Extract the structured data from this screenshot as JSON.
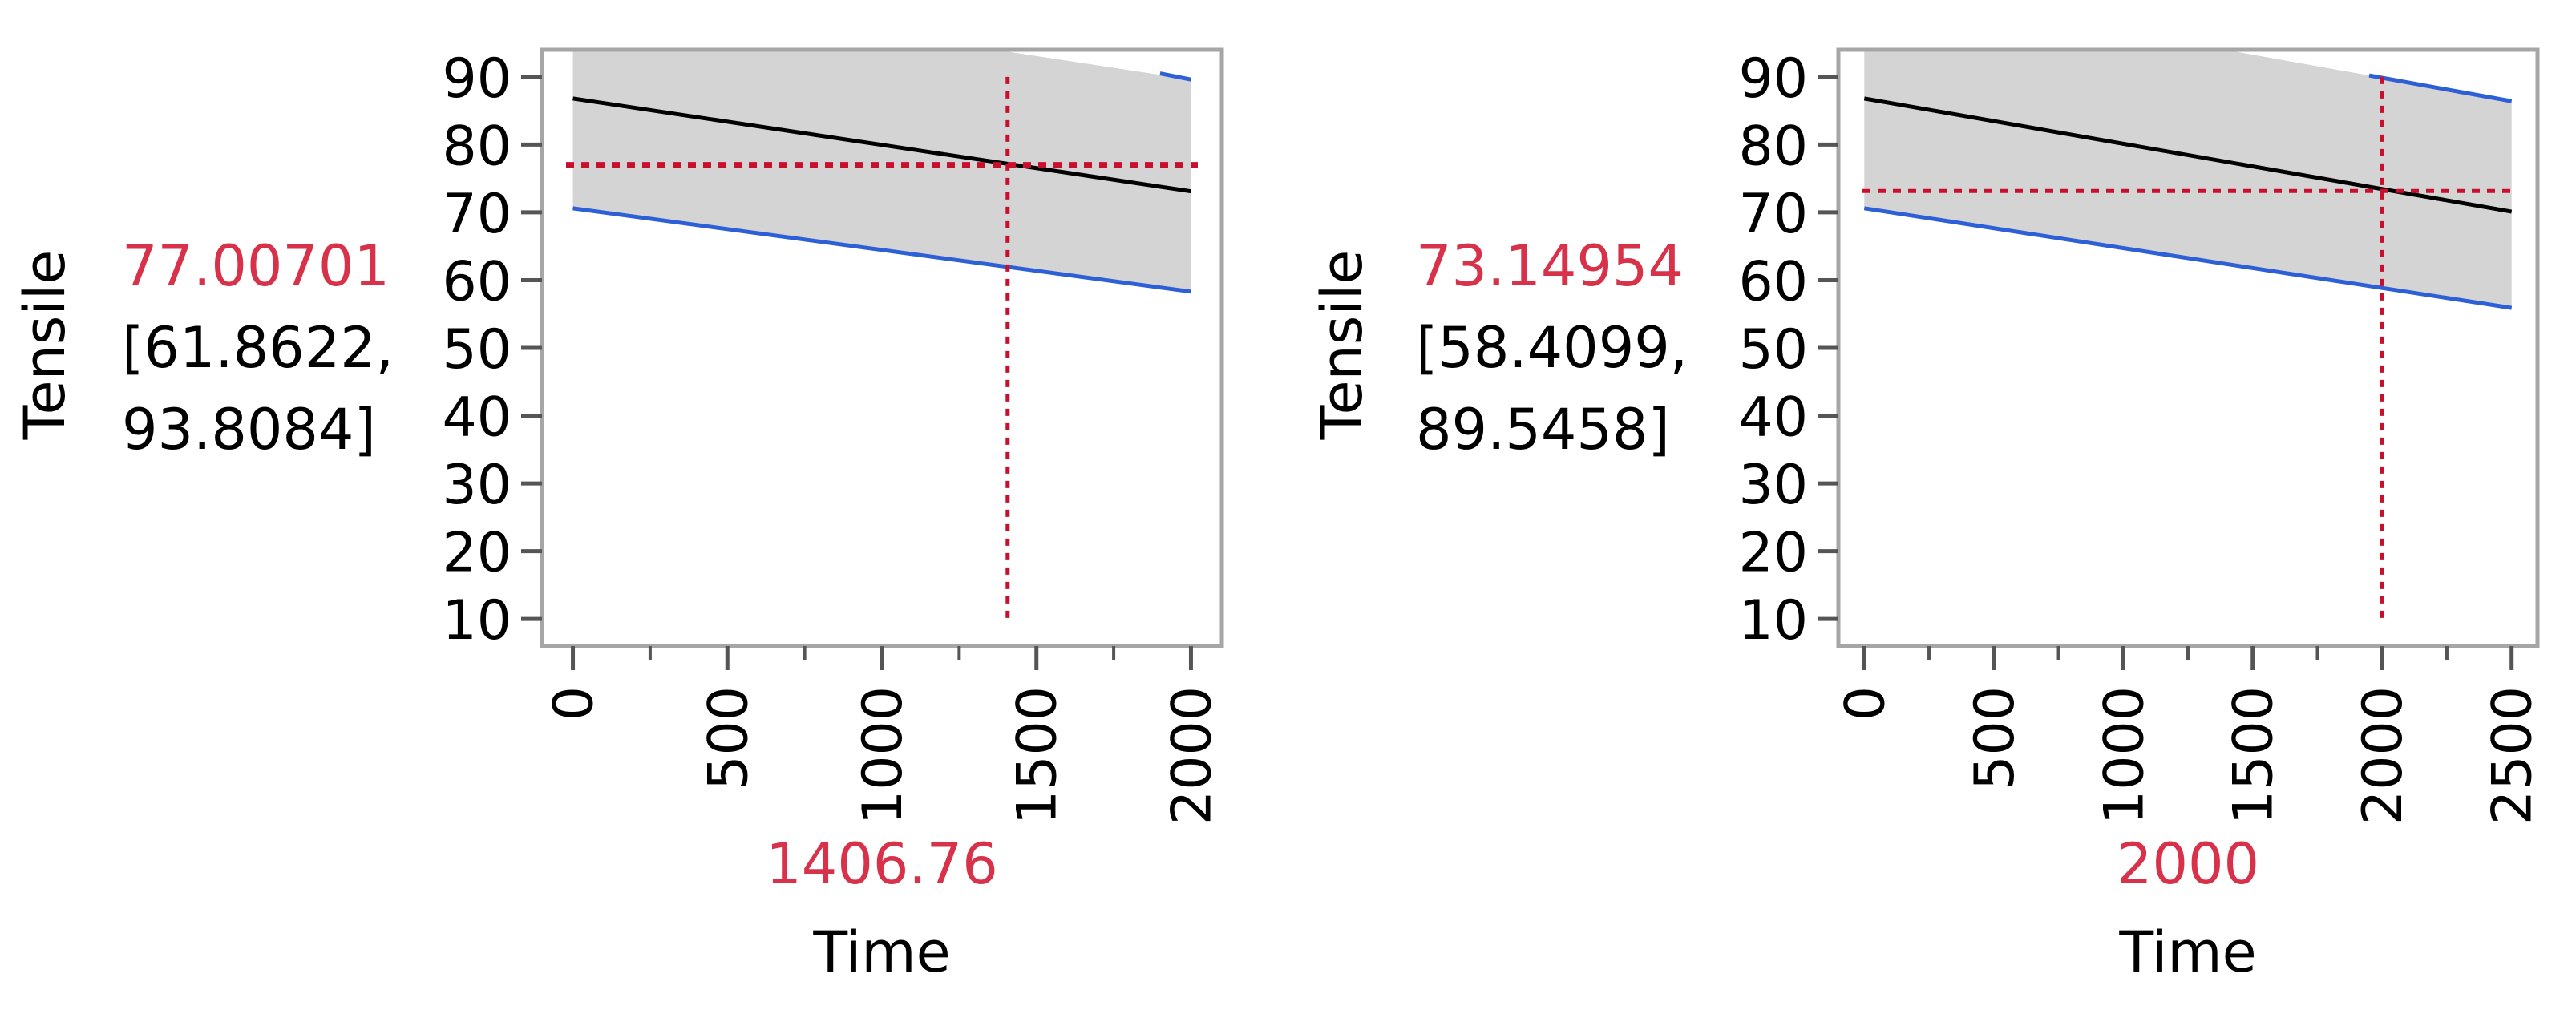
{
  "chart_data": [
    {
      "type": "line",
      "title": "",
      "ylabel": "Tensile",
      "xlabel": "Time",
      "x_current_value": "1406.76",
      "y_current_value": "77.00701",
      "y_interval_line1": "[61.8622,",
      "y_interval_line2": "93.8084]",
      "xlim": [
        -100,
        2100
      ],
      "ylim": [
        6,
        94
      ],
      "x_ticks": [
        "0",
        "500",
        "1000",
        "1500",
        "2000"
      ],
      "x_tick_values": [
        0,
        500,
        1000,
        1500,
        2000
      ],
      "y_ticks": [
        "10",
        "20",
        "30",
        "40",
        "50",
        "60",
        "70",
        "80",
        "90"
      ],
      "y_tick_values": [
        10,
        20,
        30,
        40,
        50,
        60,
        70,
        80,
        90
      ],
      "grid": false,
      "crosshair": {
        "x": 1406.76,
        "y": 77.00701
      },
      "band": {
        "x": [
          0,
          2000
        ],
        "lower": [
          70.6,
          58.3
        ],
        "upper": [
          103.5,
          89.6
        ]
      },
      "series": [
        {
          "values_x": [
            0,
            2000
          ],
          "values_y": [
            86.8,
            73.1
          ],
          "color": "#000000"
        },
        {
          "values_x": [
            0,
            2000
          ],
          "values_y": [
            70.6,
            58.3
          ],
          "color": "#2d5fd6"
        },
        {
          "values_x": [
            1900,
            2000
          ],
          "values_y": [
            90.5,
            89.6
          ],
          "color": "#2d5fd6"
        }
      ]
    },
    {
      "type": "line",
      "title": "",
      "ylabel": "Tensile",
      "xlabel": "Time",
      "x_current_value": "2000",
      "y_current_value": "73.14954",
      "y_interval_line1": "[58.4099,",
      "y_interval_line2": "89.5458]",
      "xlim": [
        -100,
        2600
      ],
      "ylim": [
        6,
        94
      ],
      "x_ticks": [
        "0",
        "500",
        "1000",
        "1500",
        "2000",
        "2500"
      ],
      "x_tick_values": [
        0,
        500,
        1000,
        1500,
        2000,
        2500
      ],
      "y_ticks": [
        "10",
        "20",
        "30",
        "40",
        "50",
        "60",
        "70",
        "80",
        "90"
      ],
      "y_tick_values": [
        10,
        20,
        30,
        40,
        50,
        60,
        70,
        80,
        90
      ],
      "grid": false,
      "crosshair": {
        "x": 2000,
        "y": 73.14954
      },
      "band": {
        "x": [
          0,
          1950,
          2500
        ],
        "lower": [
          70.6,
          59.0,
          55.9
        ],
        "upper": [
          103.5,
          90.2,
          86.4
        ]
      },
      "series": [
        {
          "values_x": [
            0,
            2500
          ],
          "values_y": [
            86.8,
            70.1
          ],
          "color": "#000000"
        },
        {
          "values_x": [
            0,
            2500
          ],
          "values_y": [
            70.6,
            55.9
          ],
          "color": "#2d5fd6"
        },
        {
          "values_x": [
            1950,
            2500
          ],
          "values_y": [
            90.2,
            86.4
          ],
          "color": "#2d5fd6"
        }
      ]
    }
  ],
  "colors": {
    "band_fill": "#d4d4d4",
    "frame": "#a6a6a6",
    "crosshair": "#c8102e",
    "highlight_text": "#d8324a",
    "text": "#000000"
  }
}
